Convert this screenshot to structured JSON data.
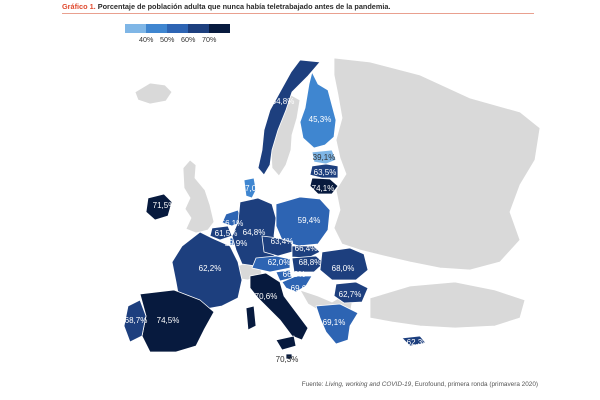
{
  "title": {
    "label": "Gráfico 1.",
    "text": "Porcentaje de población adulta que nunca había teletrabajado antes de la pandemia."
  },
  "legend": {
    "colors": [
      "#7fb6e6",
      "#3f86d0",
      "#2d64b3",
      "#1d3f7e",
      "#071a3e"
    ],
    "labels": [
      "40%",
      "50%",
      "60%",
      "70%"
    ]
  },
  "colors": {
    "no_data": "#d9d9d9",
    "border": "#ffffff"
  },
  "countries": {
    "NO": "64,8%",
    "FI": "45,3%",
    "EE": "39,1%",
    "LV": "63,5%",
    "LT": "74,1%",
    "DK": "57,0%",
    "IE": "71,5%",
    "NL": "56,1%",
    "BE": "61,5%",
    "LU": "59,9%",
    "DE": "64,8%",
    "PL": "59,4%",
    "CZ": "63,4%",
    "SK": "66,4%",
    "AT": "62,0%",
    "HU": "68,8%",
    "SI": "66,3%",
    "HR": "69,6%",
    "RO": "68,0%",
    "BG": "62,7%",
    "GR": "69,1%",
    "FR": "62,2%",
    "IT": "70,6%",
    "ES": "74,5%",
    "PT": "68,7%",
    "MT": "70,3%",
    "CY": "62,3%"
  },
  "source": {
    "prefix": "Fuente: ",
    "italic": "Living, working and COVID-19",
    "suffix": ", Eurofound, primera ronda (primavera 2020)"
  }
}
